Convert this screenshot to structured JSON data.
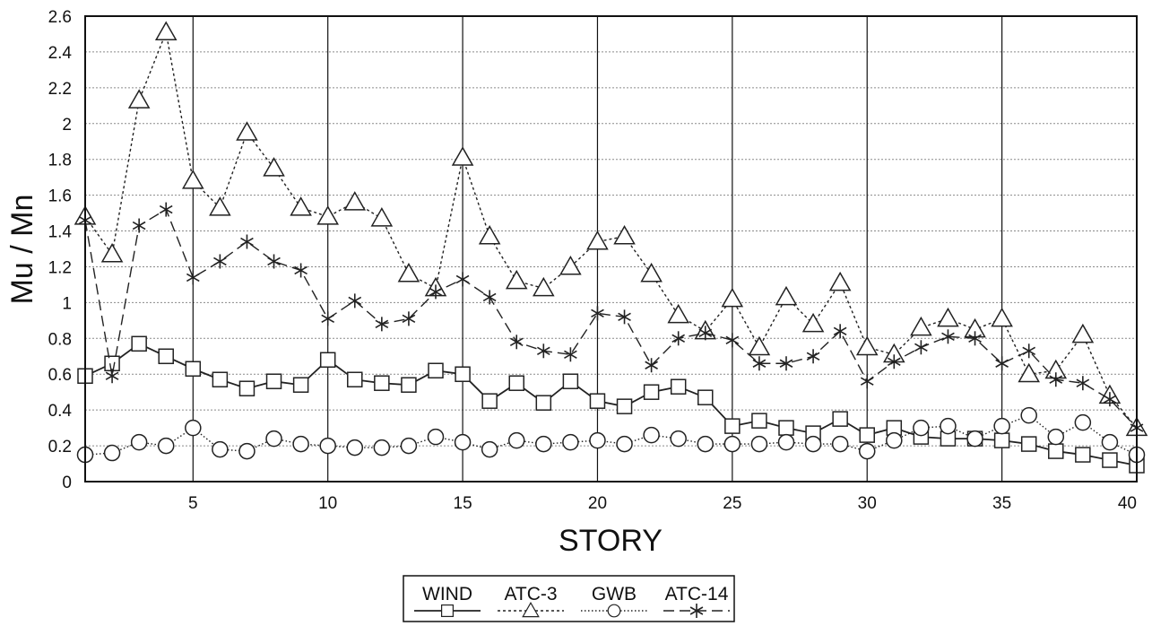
{
  "chart_data": {
    "type": "line",
    "title": "",
    "xlabel": "STORY",
    "ylabel": "Mu / Mn",
    "xlim": [
      1,
      40
    ],
    "ylim": [
      0,
      2.6
    ],
    "x_ticks": [
      5,
      10,
      15,
      20,
      25,
      30,
      35,
      40
    ],
    "y_ticks": [
      0,
      0.2,
      0.4,
      0.6,
      0.8,
      1,
      1.2,
      1.4,
      1.6,
      1.8,
      2,
      2.2,
      2.4,
      2.6
    ],
    "x_grid_lines": [
      5,
      10,
      15,
      20,
      25,
      30,
      35
    ],
    "grid": true,
    "legend_position": "bottom-center",
    "x": [
      1,
      2,
      3,
      4,
      5,
      6,
      7,
      8,
      9,
      10,
      11,
      12,
      13,
      14,
      15,
      16,
      17,
      18,
      19,
      20,
      21,
      22,
      23,
      24,
      25,
      26,
      27,
      28,
      29,
      30,
      31,
      32,
      33,
      34,
      35,
      36,
      37,
      38,
      39,
      40
    ],
    "series": [
      {
        "name": "WIND",
        "marker": "square",
        "line_style": "solid",
        "values": [
          0.59,
          0.66,
          0.77,
          0.7,
          0.63,
          0.57,
          0.52,
          0.56,
          0.54,
          0.68,
          0.57,
          0.55,
          0.54,
          0.62,
          0.6,
          0.45,
          0.55,
          0.44,
          0.56,
          0.45,
          0.42,
          0.5,
          0.53,
          0.47,
          0.31,
          0.34,
          0.3,
          0.27,
          0.35,
          0.26,
          0.3,
          0.25,
          0.24,
          0.24,
          0.23,
          0.21,
          0.17,
          0.15,
          0.12,
          0.09
        ]
      },
      {
        "name": "ATC-3",
        "marker": "triangle",
        "line_style": "dotted",
        "values": [
          1.48,
          1.27,
          2.13,
          2.51,
          1.68,
          1.53,
          1.95,
          1.75,
          1.53,
          1.48,
          1.56,
          1.47,
          1.16,
          1.08,
          1.81,
          1.37,
          1.12,
          1.08,
          1.2,
          1.34,
          1.37,
          1.16,
          0.93,
          0.84,
          1.02,
          0.75,
          1.03,
          0.88,
          1.11,
          0.75,
          0.71,
          0.86,
          0.91,
          0.85,
          0.91,
          0.6,
          0.62,
          0.82,
          0.48,
          0.3
        ]
      },
      {
        "name": "GWB",
        "marker": "circle",
        "line_style": "fine-dotted",
        "values": [
          0.15,
          0.16,
          0.22,
          0.2,
          0.3,
          0.18,
          0.17,
          0.24,
          0.21,
          0.2,
          0.19,
          0.19,
          0.2,
          0.25,
          0.22,
          0.18,
          0.23,
          0.21,
          0.22,
          0.23,
          0.21,
          0.26,
          0.24,
          0.21,
          0.21,
          0.21,
          0.22,
          0.21,
          0.21,
          0.17,
          0.23,
          0.3,
          0.31,
          0.24,
          0.31,
          0.37,
          0.25,
          0.33,
          0.22,
          0.15
        ]
      },
      {
        "name": "ATC-14",
        "marker": "asterisk",
        "line_style": "dashed",
        "values": [
          1.46,
          0.59,
          1.43,
          1.52,
          1.14,
          1.23,
          1.34,
          1.23,
          1.18,
          0.91,
          1.01,
          0.88,
          0.91,
          1.06,
          1.13,
          1.03,
          0.78,
          0.73,
          0.71,
          0.94,
          0.92,
          0.65,
          0.8,
          0.83,
          0.79,
          0.66,
          0.66,
          0.7,
          0.84,
          0.56,
          0.67,
          0.75,
          0.81,
          0.8,
          0.66,
          0.73,
          0.57,
          0.55,
          0.46,
          0.3
        ]
      }
    ]
  }
}
